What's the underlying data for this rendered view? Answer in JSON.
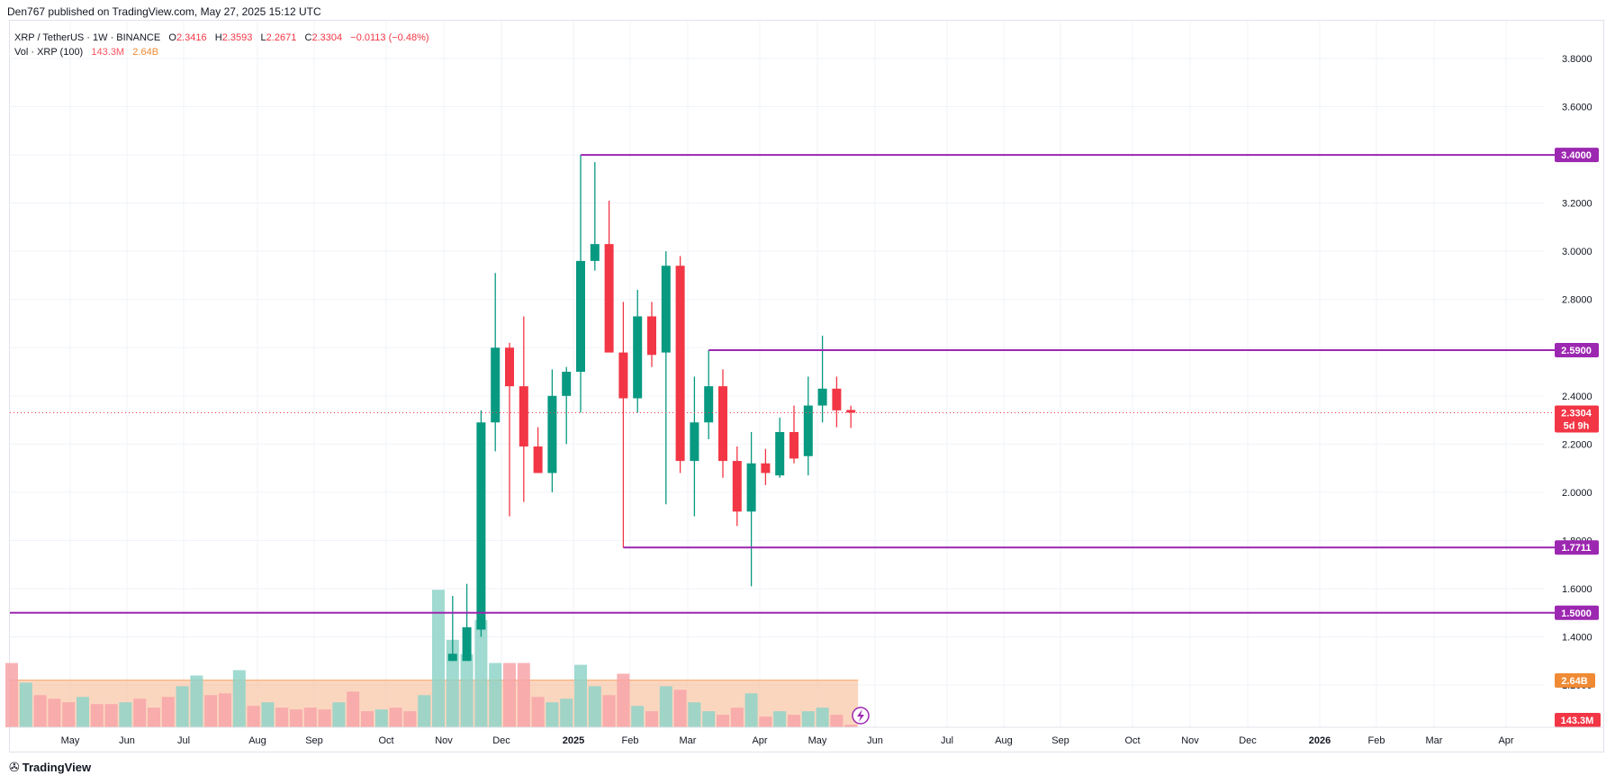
{
  "header": {
    "published_line": "Den767 published on TradingView.com, May 27, 2025 15:12 UTC"
  },
  "legend": {
    "symbol": "XRP / TetherUS · 1W · BINANCE",
    "o_label": "O",
    "o_value": "2.3416",
    "h_label": "H",
    "h_value": "2.3593",
    "l_label": "L",
    "l_value": "2.2671",
    "c_label": "C",
    "c_value": "2.3304",
    "change": "−0.0113 (−0.48%)",
    "vol_label": "Vol · XRP (100)",
    "vol_value": "143.3M",
    "vol_ma": "2.64B"
  },
  "footer": {
    "brand": "TradingView"
  },
  "colors": {
    "up": "#089981",
    "down": "#f23645",
    "level": "#9c27b0",
    "vol_up": "#8fd3c8",
    "vol_down": "#f7a5a8",
    "vol_ma": "#f7b58a",
    "vol_tag": "#f23645",
    "ma_tag": "#f08a35"
  },
  "chart_data": {
    "type": "candlestick",
    "symbol": "XRP / TetherUS",
    "interval": "1W",
    "exchange": "BINANCE",
    "y_range": [
      1.3,
      3.9
    ],
    "y_ticks": [
      "3.8000",
      "3.6000",
      "3.4000",
      "3.2000",
      "3.0000",
      "2.8000",
      "2.6000",
      "2.4000",
      "2.2000",
      "2.0000",
      "1.8000",
      "1.6000",
      "1.4000",
      "1.2000"
    ],
    "x_ticks": [
      "May",
      "Jun",
      "Jul",
      "Aug",
      "Sep",
      "Oct",
      "Nov",
      "Dec",
      "2025",
      "Feb",
      "Mar",
      "Apr",
      "May",
      "Jun",
      "Jul",
      "Aug",
      "Sep",
      "Oct",
      "Nov",
      "Dec",
      "2026",
      "Feb",
      "Mar",
      "Apr"
    ],
    "levels": [
      {
        "value": 3.4,
        "label": "3.4000",
        "from_week": 40
      },
      {
        "value": 2.59,
        "label": "2.5900",
        "from_week": 49
      },
      {
        "value": 1.7711,
        "label": "1.7711",
        "from_week": 43
      },
      {
        "value": 1.5,
        "label": "1.5000",
        "from_week": -1
      }
    ],
    "last_price": {
      "value": 2.3304,
      "label": "2.3304",
      "countdown": "5d 9h"
    },
    "volume_ma": {
      "value": 2.64,
      "label": "2.64B"
    },
    "last_volume": {
      "label": "143.3M"
    },
    "candles": [
      {
        "week": 31,
        "o": 1.3,
        "h": 1.57,
        "l": 1.3,
        "c": 1.33
      },
      {
        "week": 32,
        "o": 1.3,
        "h": 1.62,
        "l": 1.3,
        "c": 1.44
      },
      {
        "week": 33,
        "o": 1.43,
        "h": 2.34,
        "l": 1.4,
        "c": 2.29
      },
      {
        "week": 34,
        "o": 2.29,
        "h": 2.91,
        "l": 2.17,
        "c": 2.6
      },
      {
        "week": 35,
        "o": 2.6,
        "h": 2.62,
        "l": 1.9,
        "c": 2.44
      },
      {
        "week": 36,
        "o": 2.44,
        "h": 2.73,
        "l": 1.96,
        "c": 2.19
      },
      {
        "week": 37,
        "o": 2.19,
        "h": 2.27,
        "l": 2.08,
        "c": 2.08
      },
      {
        "week": 38,
        "o": 2.08,
        "h": 2.51,
        "l": 2.0,
        "c": 2.4
      },
      {
        "week": 39,
        "o": 2.4,
        "h": 2.52,
        "l": 2.2,
        "c": 2.5
      },
      {
        "week": 40,
        "o": 2.5,
        "h": 3.4,
        "l": 2.33,
        "c": 2.96
      },
      {
        "week": 41,
        "o": 2.96,
        "h": 3.37,
        "l": 2.92,
        "c": 3.03
      },
      {
        "week": 42,
        "o": 3.03,
        "h": 3.21,
        "l": 2.59,
        "c": 2.58
      },
      {
        "week": 43,
        "o": 2.58,
        "h": 2.79,
        "l": 1.77,
        "c": 2.39
      },
      {
        "week": 44,
        "o": 2.39,
        "h": 2.84,
        "l": 2.33,
        "c": 2.73
      },
      {
        "week": 45,
        "o": 2.73,
        "h": 2.79,
        "l": 2.52,
        "c": 2.57
      },
      {
        "week": 46,
        "o": 2.58,
        "h": 3.0,
        "l": 1.95,
        "c": 2.94
      },
      {
        "week": 47,
        "o": 2.94,
        "h": 2.98,
        "l": 2.08,
        "c": 2.13
      },
      {
        "week": 48,
        "o": 2.13,
        "h": 2.48,
        "l": 1.9,
        "c": 2.29
      },
      {
        "week": 49,
        "o": 2.29,
        "h": 2.59,
        "l": 2.22,
        "c": 2.44
      },
      {
        "week": 50,
        "o": 2.44,
        "h": 2.51,
        "l": 2.06,
        "c": 2.13
      },
      {
        "week": 51,
        "o": 2.13,
        "h": 2.19,
        "l": 1.86,
        "c": 1.92
      },
      {
        "week": 52,
        "o": 1.92,
        "h": 2.25,
        "l": 1.61,
        "c": 2.12
      },
      {
        "week": 53,
        "o": 2.12,
        "h": 2.18,
        "l": 2.03,
        "c": 2.08
      },
      {
        "week": 54,
        "o": 2.07,
        "h": 2.31,
        "l": 2.06,
        "c": 2.25
      },
      {
        "week": 55,
        "o": 2.25,
        "h": 2.36,
        "l": 2.12,
        "c": 2.14
      },
      {
        "week": 56,
        "o": 2.15,
        "h": 2.48,
        "l": 2.07,
        "c": 2.36
      },
      {
        "week": 57,
        "o": 2.36,
        "h": 2.65,
        "l": 2.29,
        "c": 2.43
      },
      {
        "week": 58,
        "o": 2.43,
        "h": 2.48,
        "l": 2.27,
        "c": 2.34
      },
      {
        "week": 59,
        "o": 2.3416,
        "h": 2.3593,
        "l": 2.2671,
        "c": 2.3304
      }
    ],
    "volumes": [
      {
        "week": 0,
        "v": 3.6,
        "up": false
      },
      {
        "week": 1,
        "v": 2.5,
        "up": true
      },
      {
        "week": 2,
        "v": 1.8,
        "up": false
      },
      {
        "week": 3,
        "v": 1.6,
        "up": false
      },
      {
        "week": 4,
        "v": 1.4,
        "up": false
      },
      {
        "week": 5,
        "v": 1.7,
        "up": true
      },
      {
        "week": 6,
        "v": 1.3,
        "up": false
      },
      {
        "week": 7,
        "v": 1.3,
        "up": false
      },
      {
        "week": 8,
        "v": 1.4,
        "up": true
      },
      {
        "week": 9,
        "v": 1.6,
        "up": false
      },
      {
        "week": 10,
        "v": 1.1,
        "up": false
      },
      {
        "week": 11,
        "v": 1.7,
        "up": false
      },
      {
        "week": 12,
        "v": 2.3,
        "up": true
      },
      {
        "week": 13,
        "v": 2.9,
        "up": true
      },
      {
        "week": 14,
        "v": 1.8,
        "up": false
      },
      {
        "week": 15,
        "v": 1.9,
        "up": false
      },
      {
        "week": 16,
        "v": 3.2,
        "up": true
      },
      {
        "week": 17,
        "v": 1.2,
        "up": false
      },
      {
        "week": 18,
        "v": 1.4,
        "up": true
      },
      {
        "week": 19,
        "v": 1.1,
        "up": false
      },
      {
        "week": 20,
        "v": 1.0,
        "up": false
      },
      {
        "week": 21,
        "v": 1.1,
        "up": false
      },
      {
        "week": 22,
        "v": 1.0,
        "up": false
      },
      {
        "week": 23,
        "v": 1.4,
        "up": true
      },
      {
        "week": 24,
        "v": 2.0,
        "up": false
      },
      {
        "week": 25,
        "v": 0.9,
        "up": false
      },
      {
        "week": 26,
        "v": 1.0,
        "up": true
      },
      {
        "week": 27,
        "v": 1.1,
        "up": false
      },
      {
        "week": 28,
        "v": 0.9,
        "up": false
      },
      {
        "week": 29,
        "v": 1.8,
        "up": true
      },
      {
        "week": 30,
        "v": 7.7,
        "up": true
      },
      {
        "week": 31,
        "v": 4.9,
        "up": true
      },
      {
        "week": 32,
        "v": 4.1,
        "up": true
      },
      {
        "week": 33,
        "v": 6.0,
        "up": true
      },
      {
        "week": 34,
        "v": 3.6,
        "up": true
      },
      {
        "week": 35,
        "v": 3.6,
        "up": false
      },
      {
        "week": 36,
        "v": 3.6,
        "up": false
      },
      {
        "week": 37,
        "v": 1.7,
        "up": false
      },
      {
        "week": 38,
        "v": 1.4,
        "up": true
      },
      {
        "week": 39,
        "v": 1.6,
        "up": true
      },
      {
        "week": 40,
        "v": 3.5,
        "up": true
      },
      {
        "week": 41,
        "v": 2.3,
        "up": true
      },
      {
        "week": 42,
        "v": 1.8,
        "up": false
      },
      {
        "week": 43,
        "v": 3.0,
        "up": false
      },
      {
        "week": 44,
        "v": 1.2,
        "up": true
      },
      {
        "week": 45,
        "v": 0.9,
        "up": false
      },
      {
        "week": 46,
        "v": 2.3,
        "up": true
      },
      {
        "week": 47,
        "v": 2.1,
        "up": false
      },
      {
        "week": 48,
        "v": 1.4,
        "up": true
      },
      {
        "week": 49,
        "v": 0.9,
        "up": true
      },
      {
        "week": 50,
        "v": 0.7,
        "up": false
      },
      {
        "week": 51,
        "v": 1.1,
        "up": false
      },
      {
        "week": 52,
        "v": 1.9,
        "up": true
      },
      {
        "week": 53,
        "v": 0.6,
        "up": false
      },
      {
        "week": 54,
        "v": 0.9,
        "up": true
      },
      {
        "week": 55,
        "v": 0.7,
        "up": false
      },
      {
        "week": 56,
        "v": 0.9,
        "up": true
      },
      {
        "week": 57,
        "v": 1.1,
        "up": true
      },
      {
        "week": 58,
        "v": 0.7,
        "up": false
      },
      {
        "week": 59,
        "v": 0.14,
        "up": false
      }
    ]
  }
}
